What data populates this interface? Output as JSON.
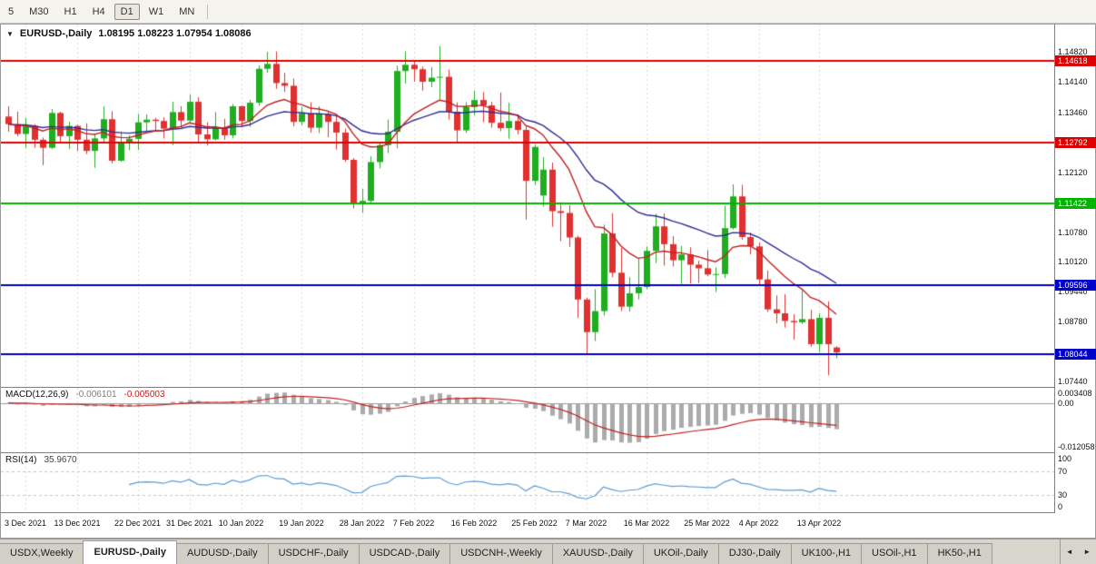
{
  "toolbar": {
    "timeframes": [
      "5",
      "M30",
      "H1",
      "H4",
      "D1",
      "W1",
      "MN"
    ],
    "selected": "D1"
  },
  "chart": {
    "symbol_label": "EURUSD-,Daily",
    "ohlc_text": "1.08195 1.08223 1.07954 1.08086",
    "open": "1.08195",
    "high": "1.08223",
    "low": "1.07954",
    "close": "1.08086",
    "colors": {
      "up": "#1fae1f",
      "down": "#e03030",
      "ma_fast": "#c02020",
      "ma_slow": "#2d2d96",
      "macd_hist": "#ababab",
      "macd_signal": "#c02020",
      "rsi_line": "#5b9bd5",
      "level_red": "#dd0000",
      "level_green": "#00b400",
      "level_blue": "#0000cc"
    },
    "price_ticks": [
      "1.14820",
      "1.14140",
      "1.13460",
      "1.12120",
      "1.10780",
      "1.10120",
      "1.09440",
      "1.08780",
      "1.07440"
    ],
    "levels": [
      {
        "price": 1.14618,
        "label": "1.14618",
        "color": "#dd0000"
      },
      {
        "price": 1.12792,
        "label": "1.12792",
        "color": "#dd0000"
      },
      {
        "price": 1.11422,
        "label": "1.11422",
        "color": "#00b400"
      },
      {
        "price": 1.09596,
        "label": "1.09596",
        "color": "#0000cc"
      },
      {
        "price": 1.08044,
        "label": "1.08044",
        "color": "#0000cc"
      }
    ]
  },
  "macd": {
    "label": "MACD(12,26,9)",
    "main_value": "-0.006101",
    "signal_value": "-0.005003",
    "ticks": [
      "0.003408",
      "0.00",
      "-0.012058"
    ]
  },
  "rsi": {
    "label": "RSI(14)",
    "value": "35.9670",
    "ticks": [
      "100",
      "70",
      "30",
      "0"
    ],
    "levels": [
      70,
      30
    ]
  },
  "tabs": {
    "items": [
      "USDX,Weekly",
      "EURUSD-,Daily",
      "AUDUSD-,Daily",
      "USDCHF-,Daily",
      "USDCAD-,Daily",
      "USDCNH-,Weekly",
      "XAUUSD-,Daily",
      "UKOil-,Daily",
      "DJ30-,Daily",
      "UK100-,H1",
      "USOil-,H1",
      "HK50-,H1"
    ],
    "active_index": 1,
    "scroll_left": "◄",
    "scroll_right": "►"
  },
  "chart_data": {
    "type": "candlestick",
    "symbol": "EURUSD-",
    "timeframe": "Daily",
    "grid": "vertical-dotted",
    "y_range": [
      1.07312,
      1.15432
    ],
    "horizontal_levels": [
      1.14618,
      1.12792,
      1.11422,
      1.09596,
      1.08044
    ],
    "ma_fast_period": 12,
    "ma_slow_period": 26,
    "indicators": [
      {
        "name": "MACD",
        "params": [
          12,
          26,
          9
        ],
        "main": -0.006101,
        "signal": -0.005003
      },
      {
        "name": "RSI",
        "params": [
          14
        ],
        "value": 35.967
      }
    ],
    "x_labels": [
      {
        "i": 2,
        "label": "3 Dec 2021"
      },
      {
        "i": 8,
        "label": "13 Dec 2021"
      },
      {
        "i": 15,
        "label": "22 Dec 2021"
      },
      {
        "i": 21,
        "label": "31 Dec 2021"
      },
      {
        "i": 27,
        "label": "10 Jan 2022"
      },
      {
        "i": 34,
        "label": "19 Jan 2022"
      },
      {
        "i": 41,
        "label": "28 Jan 2022"
      },
      {
        "i": 47,
        "label": "7 Feb 2022"
      },
      {
        "i": 54,
        "label": "16 Feb 2022"
      },
      {
        "i": 61,
        "label": "25 Feb 2022"
      },
      {
        "i": 67,
        "label": "7 Mar 2022"
      },
      {
        "i": 74,
        "label": "16 Mar 2022"
      },
      {
        "i": 81,
        "label": "25 Mar 2022"
      },
      {
        "i": 87,
        "label": "4 Apr 2022"
      },
      {
        "i": 94,
        "label": "13 Apr 2022"
      }
    ],
    "ohlc": [
      [
        1.1337,
        1.136,
        1.1303,
        1.132
      ],
      [
        1.132,
        1.1348,
        1.1293,
        1.1298
      ],
      [
        1.1298,
        1.1334,
        1.1267,
        1.1316
      ],
      [
        1.1316,
        1.132,
        1.1267,
        1.1285
      ],
      [
        1.1285,
        1.129,
        1.1228,
        1.1267
      ],
      [
        1.1267,
        1.1354,
        1.1264,
        1.1345
      ],
      [
        1.1345,
        1.1348,
        1.128,
        1.1293
      ],
      [
        1.1293,
        1.1325,
        1.1264,
        1.1316
      ],
      [
        1.1316,
        1.1319,
        1.126,
        1.1285
      ],
      [
        1.1285,
        1.1322,
        1.1253,
        1.126
      ],
      [
        1.126,
        1.1297,
        1.1222,
        1.1288
      ],
      [
        1.1288,
        1.136,
        1.128,
        1.1331
      ],
      [
        1.1331,
        1.1349,
        1.1232,
        1.1238
      ],
      [
        1.1238,
        1.1304,
        1.1236,
        1.1278
      ],
      [
        1.1278,
        1.1295,
        1.1262,
        1.1287
      ],
      [
        1.1287,
        1.1343,
        1.1262,
        1.1324
      ],
      [
        1.1324,
        1.1342,
        1.1301,
        1.133
      ],
      [
        1.133,
        1.1334,
        1.1303,
        1.1327
      ],
      [
        1.1327,
        1.1335,
        1.1288,
        1.131
      ],
      [
        1.131,
        1.137,
        1.1273,
        1.1347
      ],
      [
        1.1347,
        1.136,
        1.1314,
        1.1328
      ],
      [
        1.1328,
        1.1386,
        1.1321,
        1.137
      ],
      [
        1.137,
        1.138,
        1.1279,
        1.1297
      ],
      [
        1.1297,
        1.1324,
        1.1272,
        1.1286
      ],
      [
        1.1286,
        1.1347,
        1.1284,
        1.1313
      ],
      [
        1.1313,
        1.1332,
        1.1285,
        1.1295
      ],
      [
        1.1295,
        1.1365,
        1.1288,
        1.136
      ],
      [
        1.136,
        1.1362,
        1.1313,
        1.1327
      ],
      [
        1.1327,
        1.1374,
        1.1314,
        1.1368
      ],
      [
        1.1368,
        1.1452,
        1.1361,
        1.1444
      ],
      [
        1.1444,
        1.1482,
        1.1435,
        1.1455
      ],
      [
        1.1455,
        1.1483,
        1.1399,
        1.1412
      ],
      [
        1.1412,
        1.1435,
        1.1392,
        1.1406
      ],
      [
        1.1406,
        1.1422,
        1.1315,
        1.1325
      ],
      [
        1.1325,
        1.1359,
        1.1318,
        1.1344
      ],
      [
        1.1344,
        1.1369,
        1.1301,
        1.1312
      ],
      [
        1.1312,
        1.136,
        1.13,
        1.1343
      ],
      [
        1.1343,
        1.1349,
        1.1291,
        1.1325
      ],
      [
        1.1325,
        1.1338,
        1.1263,
        1.1301
      ],
      [
        1.1301,
        1.131,
        1.1235,
        1.124
      ],
      [
        1.124,
        1.1244,
        1.1131,
        1.1144
      ],
      [
        1.1144,
        1.1175,
        1.1121,
        1.1148
      ],
      [
        1.1148,
        1.1248,
        1.1141,
        1.1235
      ],
      [
        1.1235,
        1.1279,
        1.1221,
        1.1273
      ],
      [
        1.1273,
        1.133,
        1.1255,
        1.1303
      ],
      [
        1.1303,
        1.1451,
        1.1266,
        1.1439
      ],
      [
        1.1439,
        1.1483,
        1.1411,
        1.1453
      ],
      [
        1.1453,
        1.1462,
        1.1415,
        1.1443
      ],
      [
        1.1443,
        1.1449,
        1.1395,
        1.1415
      ],
      [
        1.1415,
        1.1448,
        1.1403,
        1.1424
      ],
      [
        1.1424,
        1.1495,
        1.1375,
        1.1426
      ],
      [
        1.1426,
        1.1442,
        1.133,
        1.1348
      ],
      [
        1.1348,
        1.1369,
        1.1278,
        1.1306
      ],
      [
        1.1306,
        1.1369,
        1.13,
        1.1358
      ],
      [
        1.1358,
        1.1395,
        1.134,
        1.1374
      ],
      [
        1.1374,
        1.1392,
        1.1324,
        1.1362
      ],
      [
        1.1362,
        1.137,
        1.1312,
        1.1323
      ],
      [
        1.1323,
        1.1391,
        1.1304,
        1.1311
      ],
      [
        1.1311,
        1.1368,
        1.1287,
        1.1327
      ],
      [
        1.1327,
        1.1342,
        1.1297,
        1.1307
      ],
      [
        1.1307,
        1.1315,
        1.1106,
        1.1193
      ],
      [
        1.1193,
        1.1274,
        1.1184,
        1.1269
      ],
      [
        1.116,
        1.1246,
        1.1135,
        1.1218
      ],
      [
        1.1218,
        1.1234,
        1.109,
        1.1125
      ],
      [
        1.1125,
        1.1145,
        1.1058,
        1.1121
      ],
      [
        1.1121,
        1.1139,
        1.1045,
        1.1066
      ],
      [
        1.1066,
        1.107,
        1.0886,
        1.0927
      ],
      [
        1.0927,
        1.0931,
        1.0806,
        1.0854
      ],
      [
        1.0854,
        1.095,
        1.0834,
        1.0901
      ],
      [
        1.0901,
        1.1095,
        1.0891,
        1.1075
      ],
      [
        1.1075,
        1.1121,
        1.0977,
        1.0987
      ],
      [
        1.0987,
        1.1043,
        1.0901,
        1.0911
      ],
      [
        1.0911,
        1.0977,
        1.09,
        1.0941
      ],
      [
        1.0941,
        1.102,
        1.0927,
        1.0955
      ],
      [
        1.0955,
        1.1046,
        1.095,
        1.1036
      ],
      [
        1.1036,
        1.1119,
        1.1009,
        1.1091
      ],
      [
        1.1091,
        1.112,
        1.1003,
        1.1051
      ],
      [
        1.1051,
        1.1069,
        1.1001,
        1.1015
      ],
      [
        1.1015,
        1.1047,
        1.0962,
        1.1028
      ],
      [
        1.1028,
        1.1044,
        1.0963,
        1.1005
      ],
      [
        1.1005,
        1.1014,
        1.0964,
        1.0997
      ],
      [
        1.0997,
        1.1038,
        1.0979,
        1.0983
      ],
      [
        1.0983,
        1.0999,
        1.0944,
        1.0984
      ],
      [
        1.0984,
        1.1137,
        1.0975,
        1.1087
      ],
      [
        1.1087,
        1.1185,
        1.1084,
        1.1158
      ],
      [
        1.1158,
        1.1184,
        1.1061,
        1.1067
      ],
      [
        1.1067,
        1.1077,
        1.1028,
        1.1046
      ],
      [
        1.1046,
        1.1055,
        1.096,
        1.0972
      ],
      [
        1.0972,
        1.0992,
        1.0899,
        1.0905
      ],
      [
        1.0905,
        1.0936,
        1.0874,
        1.0896
      ],
      [
        1.0896,
        1.0939,
        1.0864,
        1.0879
      ],
      [
        1.0879,
        1.0894,
        1.0837,
        1.0876
      ],
      [
        1.0876,
        1.095,
        1.0872,
        1.0883
      ],
      [
        1.0883,
        1.0904,
        1.0821,
        1.0827
      ],
      [
        1.0827,
        1.0896,
        1.0809,
        1.0886
      ],
      [
        1.0886,
        1.0923,
        1.0757,
        1.0827
      ],
      [
        1.08195,
        1.08223,
        1.07954,
        1.08086
      ]
    ]
  }
}
